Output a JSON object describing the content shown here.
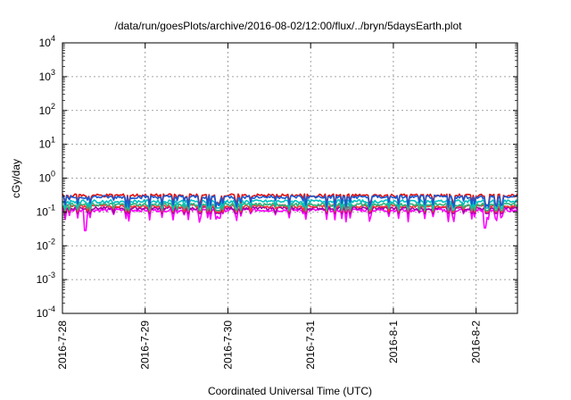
{
  "chart_data": {
    "type": "line",
    "title": "/data/run/goesPlots/archive/2016-08-02/12:00/flux/../bryn/5daysEarth.plot",
    "xlabel": "Coordinated Universal Time (UTC)",
    "ylabel": "cGy/day",
    "yscale": "log",
    "ylim": [
      0.0001,
      10000
    ],
    "xlim": [
      "2016-07-28 00:00",
      "2016-08-02 12:00"
    ],
    "grid": true,
    "x_ticks": [
      "2016-7-28",
      "2016-7-29",
      "2016-7-30",
      "2016-7-31",
      "2016-8-1",
      "2016-8-2"
    ],
    "y_ticks": [
      {
        "base": "10",
        "exp": "-4"
      },
      {
        "base": "10",
        "exp": "-3"
      },
      {
        "base": "10",
        "exp": "-2"
      },
      {
        "base": "10",
        "exp": "-1"
      },
      {
        "base": "10",
        "exp": "0"
      },
      {
        "base": "10",
        "exp": "1"
      },
      {
        "base": "10",
        "exp": "2"
      },
      {
        "base": "10",
        "exp": "3"
      },
      {
        "base": "10",
        "exp": "4"
      }
    ],
    "series": [
      {
        "color": "#ff00ff",
        "base": 0.11,
        "min": 0.028,
        "note_date_min": "2016-07-28 08:00"
      },
      {
        "color": "#a000a0",
        "base": 0.125,
        "min": 0.09
      },
      {
        "color": "#ff3333",
        "base": 0.145,
        "min": 0.1
      },
      {
        "color": "#2db37a",
        "base": 0.16,
        "min": 0.11
      },
      {
        "color": "#00c0c0",
        "base": 0.2,
        "min": 0.13
      },
      {
        "color": "#e01010",
        "base": 0.3,
        "min": 0.15
      },
      {
        "color": "#1a5ad0",
        "base": 0.27,
        "min": 0.14
      }
    ]
  }
}
